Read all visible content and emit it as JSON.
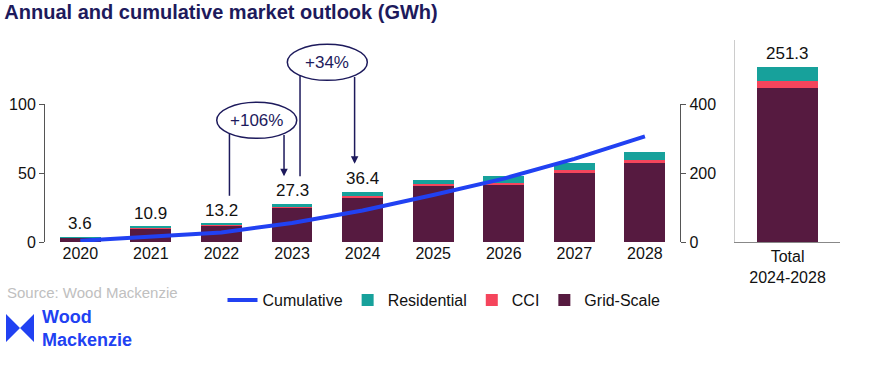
{
  "chart_data": [
    {
      "type": "bar",
      "title": "Annual and cumulative market outlook (GWh)",
      "source": "Source: Wood Mackenzie",
      "logo": "Wood Mackenzie",
      "categories": [
        "2020",
        "2021",
        "2022",
        "2023",
        "2024",
        "2025",
        "2026",
        "2027",
        "2028"
      ],
      "series": [
        {
          "name": "Grid-Scale",
          "color": "#561a40",
          "values": [
            3.3,
            10.0,
            12.0,
            25.0,
            32.5,
            40.5,
            41.0,
            50.0,
            57.0
          ]
        },
        {
          "name": "CCI",
          "color": "#f5455c",
          "values": [
            0.1,
            0.3,
            0.4,
            0.5,
            1.2,
            1.5,
            2.0,
            2.3,
            2.5
          ]
        },
        {
          "name": "Residential",
          "color": "#17a19b",
          "values": [
            0.2,
            0.6,
            0.8,
            1.8,
            2.7,
            3.0,
            4.5,
            4.7,
            5.9
          ]
        },
        {
          "name": "Cumulative",
          "type": "line",
          "axis": "y2",
          "color": "#2141f2",
          "values": [
            3.6,
            14.5,
            27.7,
            55.0,
            91.4,
            136.4,
            183.9,
            240.9,
            306.3
          ]
        }
      ],
      "totals": [
        3.6,
        10.9,
        13.2,
        27.3,
        36.4,
        null,
        null,
        null,
        null
      ],
      "annotations": [
        {
          "text": "+106%",
          "from": "2022",
          "to": "2023"
        },
        {
          "text": "+34%",
          "from": "2023",
          "to": "2024"
        }
      ],
      "ylim": [
        0,
        100
      ],
      "yticks": [
        0,
        50,
        100
      ],
      "y2lim": [
        0,
        400
      ],
      "y2ticks": [
        0,
        200,
        400
      ],
      "stacked": true,
      "grid": false,
      "legend": "bottom"
    },
    {
      "type": "bar",
      "categories": [
        "Total 2024-2028"
      ],
      "series": [
        {
          "name": "Grid-Scale",
          "color": "#561a40",
          "values": [
            221.0
          ]
        },
        {
          "name": "CCI",
          "color": "#f5455c",
          "values": [
            9.5
          ]
        },
        {
          "name": "Residential",
          "color": "#17a19b",
          "values": [
            20.8
          ]
        }
      ],
      "totals": [
        251.3
      ],
      "ylim": [
        0,
        290
      ],
      "stacked": true,
      "grid": false,
      "tick_labels": "x"
    }
  ]
}
